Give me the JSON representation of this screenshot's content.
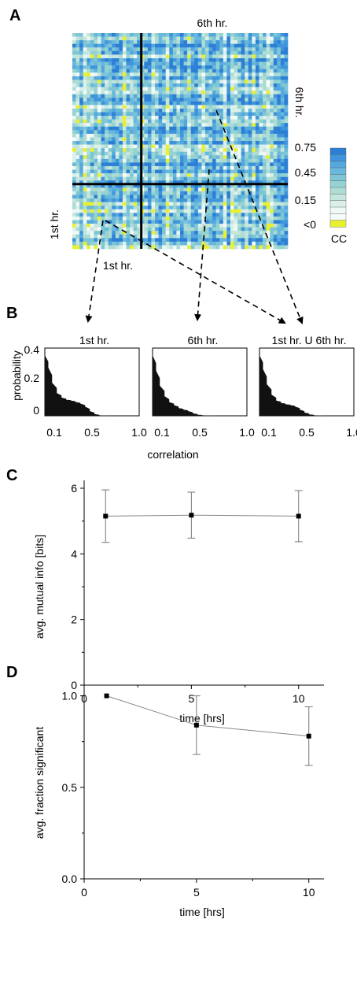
{
  "panels": {
    "A": {
      "letter": "A",
      "top_label": "6th hr.",
      "right_label": "6th hr.",
      "left_label": "1st hr.",
      "bottom_label": "1st hr.",
      "colorbar": {
        "ticks": [
          "0.75",
          "0.45",
          "0.15",
          "<0"
        ],
        "title": "CC",
        "colors": [
          "#2d7fd6",
          "#3f95dc",
          "#55a8de",
          "#68b7dc",
          "#7ec6d6",
          "#95d2d2",
          "#acdcd3",
          "#c4e6dc",
          "#dbf0ea",
          "#eef8f6",
          "#f7fbfb",
          "#e8f030"
        ]
      }
    },
    "B": {
      "letter": "B",
      "ylabel": "probability",
      "xlabel": "correlation",
      "yticks": [
        "0.4",
        "0.2",
        "0"
      ],
      "xticks": [
        "0.1",
        "0.5",
        "1.0"
      ],
      "subplots": [
        {
          "title": "1st hr."
        },
        {
          "title": "6th hr."
        },
        {
          "title": "1st hr. U  6th hr."
        }
      ]
    },
    "C": {
      "letter": "C"
    },
    "D": {
      "letter": "D"
    }
  },
  "chart_data": [
    {
      "type": "heatmap",
      "panel": "A",
      "rows": 60,
      "cols": 60,
      "value_range": [
        0,
        0.75
      ],
      "colorbar_label": "CC",
      "divider_row_fraction": 0.7,
      "divider_col_fraction": 0.32
    },
    {
      "type": "bar",
      "panel": "B",
      "subplot": "1st hr.",
      "xlabel": "correlation",
      "ylabel": "probability",
      "xlim": [
        0,
        1.0
      ],
      "ylim": [
        0,
        0.45
      ],
      "x": [
        0.02,
        0.05,
        0.1,
        0.15,
        0.2,
        0.25,
        0.3,
        0.35,
        0.4,
        0.45,
        0.5,
        0.55,
        0.6,
        0.65
      ],
      "values": [
        0.4,
        0.32,
        0.22,
        0.15,
        0.12,
        0.105,
        0.1,
        0.09,
        0.08,
        0.06,
        0.03,
        0.01,
        0.002,
        0
      ]
    },
    {
      "type": "bar",
      "panel": "B",
      "subplot": "6th hr.",
      "xlabel": "correlation",
      "ylabel": "probability",
      "xlim": [
        0,
        1.0
      ],
      "ylim": [
        0,
        0.45
      ],
      "x": [
        0.02,
        0.05,
        0.1,
        0.15,
        0.2,
        0.25,
        0.3,
        0.35,
        0.4,
        0.45,
        0.5,
        0.55,
        0.6,
        0.65
      ],
      "values": [
        0.4,
        0.3,
        0.2,
        0.13,
        0.09,
        0.07,
        0.05,
        0.04,
        0.03,
        0.015,
        0.006,
        0.002,
        0,
        0
      ]
    },
    {
      "type": "bar",
      "panel": "B",
      "subplot": "1st hr. U  6th hr.",
      "xlabel": "correlation",
      "ylabel": "probability",
      "xlim": [
        0,
        1.0
      ],
      "ylim": [
        0,
        0.45
      ],
      "x": [
        0.02,
        0.05,
        0.1,
        0.15,
        0.2,
        0.25,
        0.3,
        0.35,
        0.4,
        0.45,
        0.5,
        0.55,
        0.6,
        0.65
      ],
      "values": [
        0.4,
        0.31,
        0.21,
        0.14,
        0.1,
        0.085,
        0.075,
        0.07,
        0.06,
        0.04,
        0.02,
        0.008,
        0.002,
        0
      ]
    },
    {
      "type": "line",
      "panel": "C",
      "xlabel": "time [hrs]",
      "ylabel": "avg. mutual info [bits]",
      "x": [
        1,
        5,
        10
      ],
      "y": [
        5.15,
        5.18,
        5.15
      ],
      "yerr_low": [
        4.35,
        4.48,
        4.37
      ],
      "yerr_high": [
        5.95,
        5.88,
        5.93
      ],
      "xticks": [
        "0",
        "5",
        "10"
      ],
      "yticks": [
        "0",
        "2",
        "4",
        "6"
      ],
      "xlim": [
        0,
        11
      ],
      "ylim": [
        0,
        6
      ]
    },
    {
      "type": "line",
      "panel": "D",
      "xlabel": "time [hrs]",
      "ylabel": "avg. fraction significant",
      "x": [
        1,
        5,
        10
      ],
      "y": [
        1.0,
        0.84,
        0.78
      ],
      "yerr_low": [
        1.0,
        0.68,
        0.62
      ],
      "yerr_high": [
        1.0,
        1.0,
        0.94
      ],
      "xticks": [
        "0",
        "5",
        "10"
      ],
      "yticks": [
        "0.0",
        "0.5",
        "1.0"
      ],
      "xlim": [
        0,
        10.5
      ],
      "ylim": [
        0,
        1.05
      ]
    }
  ]
}
